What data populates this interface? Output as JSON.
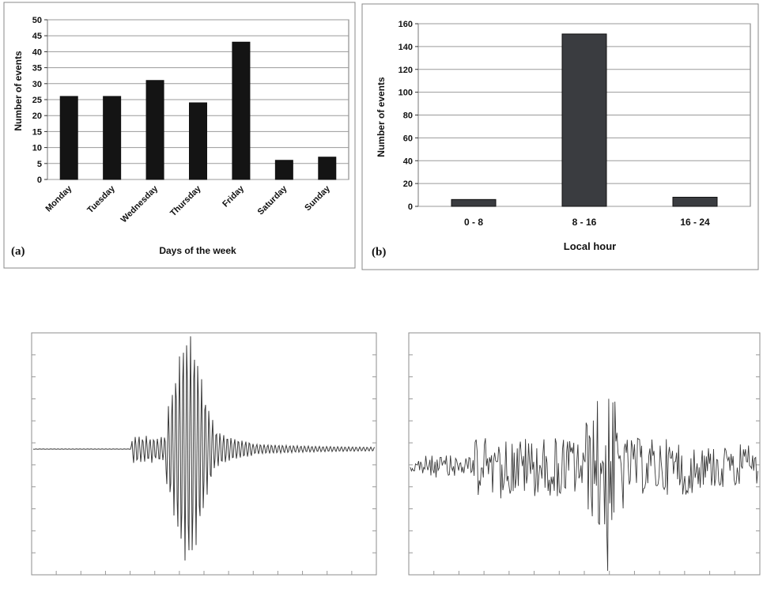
{
  "colors": {
    "bar_a": "#141414",
    "bar_b": "#3a3c40",
    "grid": "#9a9a9a",
    "trace": "#333333",
    "frame": "#8c8c8c"
  },
  "chart_data": [
    {
      "type": "bar",
      "panel_label": "(a)",
      "categories": [
        "Monday",
        "Tuesday",
        "Wednesday",
        "Thursday",
        "Friday",
        "Saturday",
        "Sunday"
      ],
      "values": [
        26,
        26,
        31,
        24,
        43,
        6,
        7
      ],
      "xlabel": "Days of the week",
      "ylabel": "Number of events",
      "ylim": [
        0,
        50
      ],
      "yticks": [
        "0",
        "5",
        "10",
        "15",
        "20",
        "25",
        "30",
        "35",
        "40",
        "45",
        "50"
      ],
      "grid": true
    },
    {
      "type": "bar",
      "panel_label": "(b)",
      "categories": [
        "0 - 8",
        "8 - 16",
        "16 - 24"
      ],
      "values": [
        6,
        151,
        8
      ],
      "xlabel": "Local hour",
      "ylabel": "Number of events",
      "ylim": [
        0,
        160
      ],
      "yticks": [
        "0",
        "20",
        "40",
        "60",
        "80",
        "100",
        "120",
        "140",
        "160"
      ],
      "grid": true
    },
    {
      "type": "line",
      "series": [
        {
          "waveform": "seismogram",
          "note": ""
        }
      ]
    },
    {
      "type": "line",
      "series": [
        {
          "waveform": "noisy-signal"
        }
      ]
    }
  ]
}
